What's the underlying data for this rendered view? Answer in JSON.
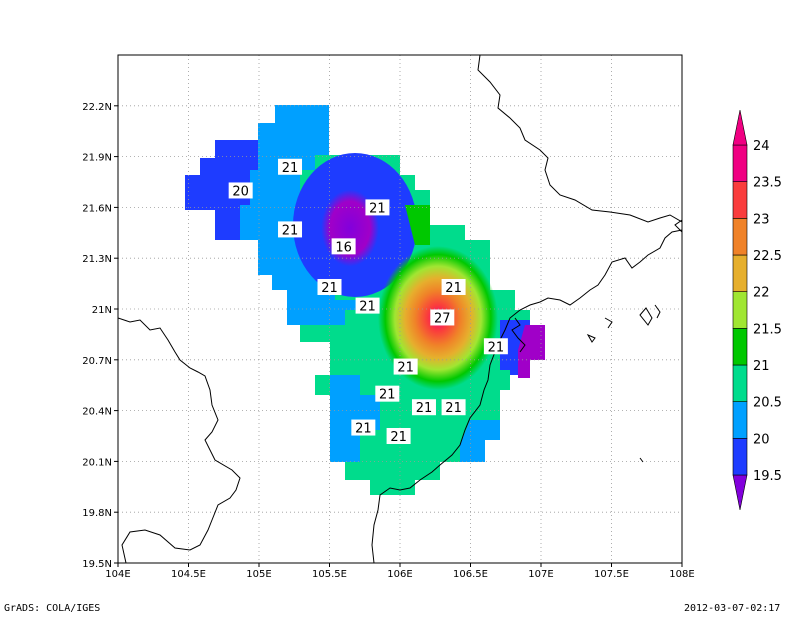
{
  "map": {
    "lon_range": [
      104,
      108
    ],
    "lat_range": [
      19.5,
      22.5
    ],
    "lon_ticks": [
      {
        "value": 104,
        "label": "104E"
      },
      {
        "value": 104.5,
        "label": "104.5E"
      },
      {
        "value": 105,
        "label": "105E"
      },
      {
        "value": 105.5,
        "label": "105.5E"
      },
      {
        "value": 106,
        "label": "106E"
      },
      {
        "value": 106.5,
        "label": "106.5E"
      },
      {
        "value": 107,
        "label": "107E"
      },
      {
        "value": 107.5,
        "label": "107.5E"
      },
      {
        "value": 108,
        "label": "108E"
      }
    ],
    "lat_ticks": [
      {
        "value": 19.5,
        "label": "19.5N"
      },
      {
        "value": 19.8,
        "label": "19.8N"
      },
      {
        "value": 20.1,
        "label": "20.1N"
      },
      {
        "value": 20.4,
        "label": "20.4N"
      },
      {
        "value": 20.7,
        "label": "20.7N"
      },
      {
        "value": 21.0,
        "label": "21N"
      },
      {
        "value": 21.3,
        "label": "21.3N"
      },
      {
        "value": 21.6,
        "label": "21.6N"
      },
      {
        "value": 21.9,
        "label": "21.9N"
      },
      {
        "value": 22.2,
        "label": "22.2N"
      }
    ],
    "grid": "dotted",
    "contour_labels": [
      {
        "text": "20",
        "lon": 104.87,
        "lat": 21.7
      },
      {
        "text": "21",
        "lon": 105.22,
        "lat": 21.84
      },
      {
        "text": "21",
        "lon": 105.22,
        "lat": 21.47
      },
      {
        "text": "21",
        "lon": 105.84,
        "lat": 21.6
      },
      {
        "text": "16",
        "lon": 105.6,
        "lat": 21.37
      },
      {
        "text": "21",
        "lon": 105.5,
        "lat": 21.13
      },
      {
        "text": "21",
        "lon": 105.77,
        "lat": 21.02
      },
      {
        "text": "21",
        "lon": 106.38,
        "lat": 21.13
      },
      {
        "text": "27",
        "lon": 106.3,
        "lat": 20.95
      },
      {
        "text": "21",
        "lon": 106.68,
        "lat": 20.78
      },
      {
        "text": "21",
        "lon": 106.04,
        "lat": 20.66
      },
      {
        "text": "21",
        "lon": 105.91,
        "lat": 20.5
      },
      {
        "text": "21",
        "lon": 106.17,
        "lat": 20.42
      },
      {
        "text": "21",
        "lon": 106.38,
        "lat": 20.42
      },
      {
        "text": "21",
        "lon": 105.74,
        "lat": 20.3
      },
      {
        "text": "21",
        "lon": 105.99,
        "lat": 20.25
      }
    ]
  },
  "colorbar": {
    "levels": [
      {
        "value": 19.5,
        "label": "19.5",
        "color": "#a000c8"
      },
      {
        "value": 20,
        "label": "20",
        "color": "#1e3cff"
      },
      {
        "value": 20.5,
        "label": "20.5",
        "color": "#00a0ff"
      },
      {
        "value": 21,
        "label": "21",
        "color": "#00dc8c"
      },
      {
        "value": 21.5,
        "label": "21.5",
        "color": "#00c800"
      },
      {
        "value": 22,
        "label": "22",
        "color": "#a0e632"
      },
      {
        "value": 22.5,
        "label": "22.5",
        "color": "#e6af2d"
      },
      {
        "value": 23,
        "label": "23",
        "color": "#f08228"
      },
      {
        "value": 23.5,
        "label": "23.5",
        "color": "#fa3c3c"
      },
      {
        "value": 24,
        "label": "24",
        "color": "#f00082"
      }
    ],
    "under_color": "#8200dc"
  },
  "footer": {
    "credit": "GrADS: COLA/IGES",
    "timestamp": "2012-03-07-02:17"
  }
}
